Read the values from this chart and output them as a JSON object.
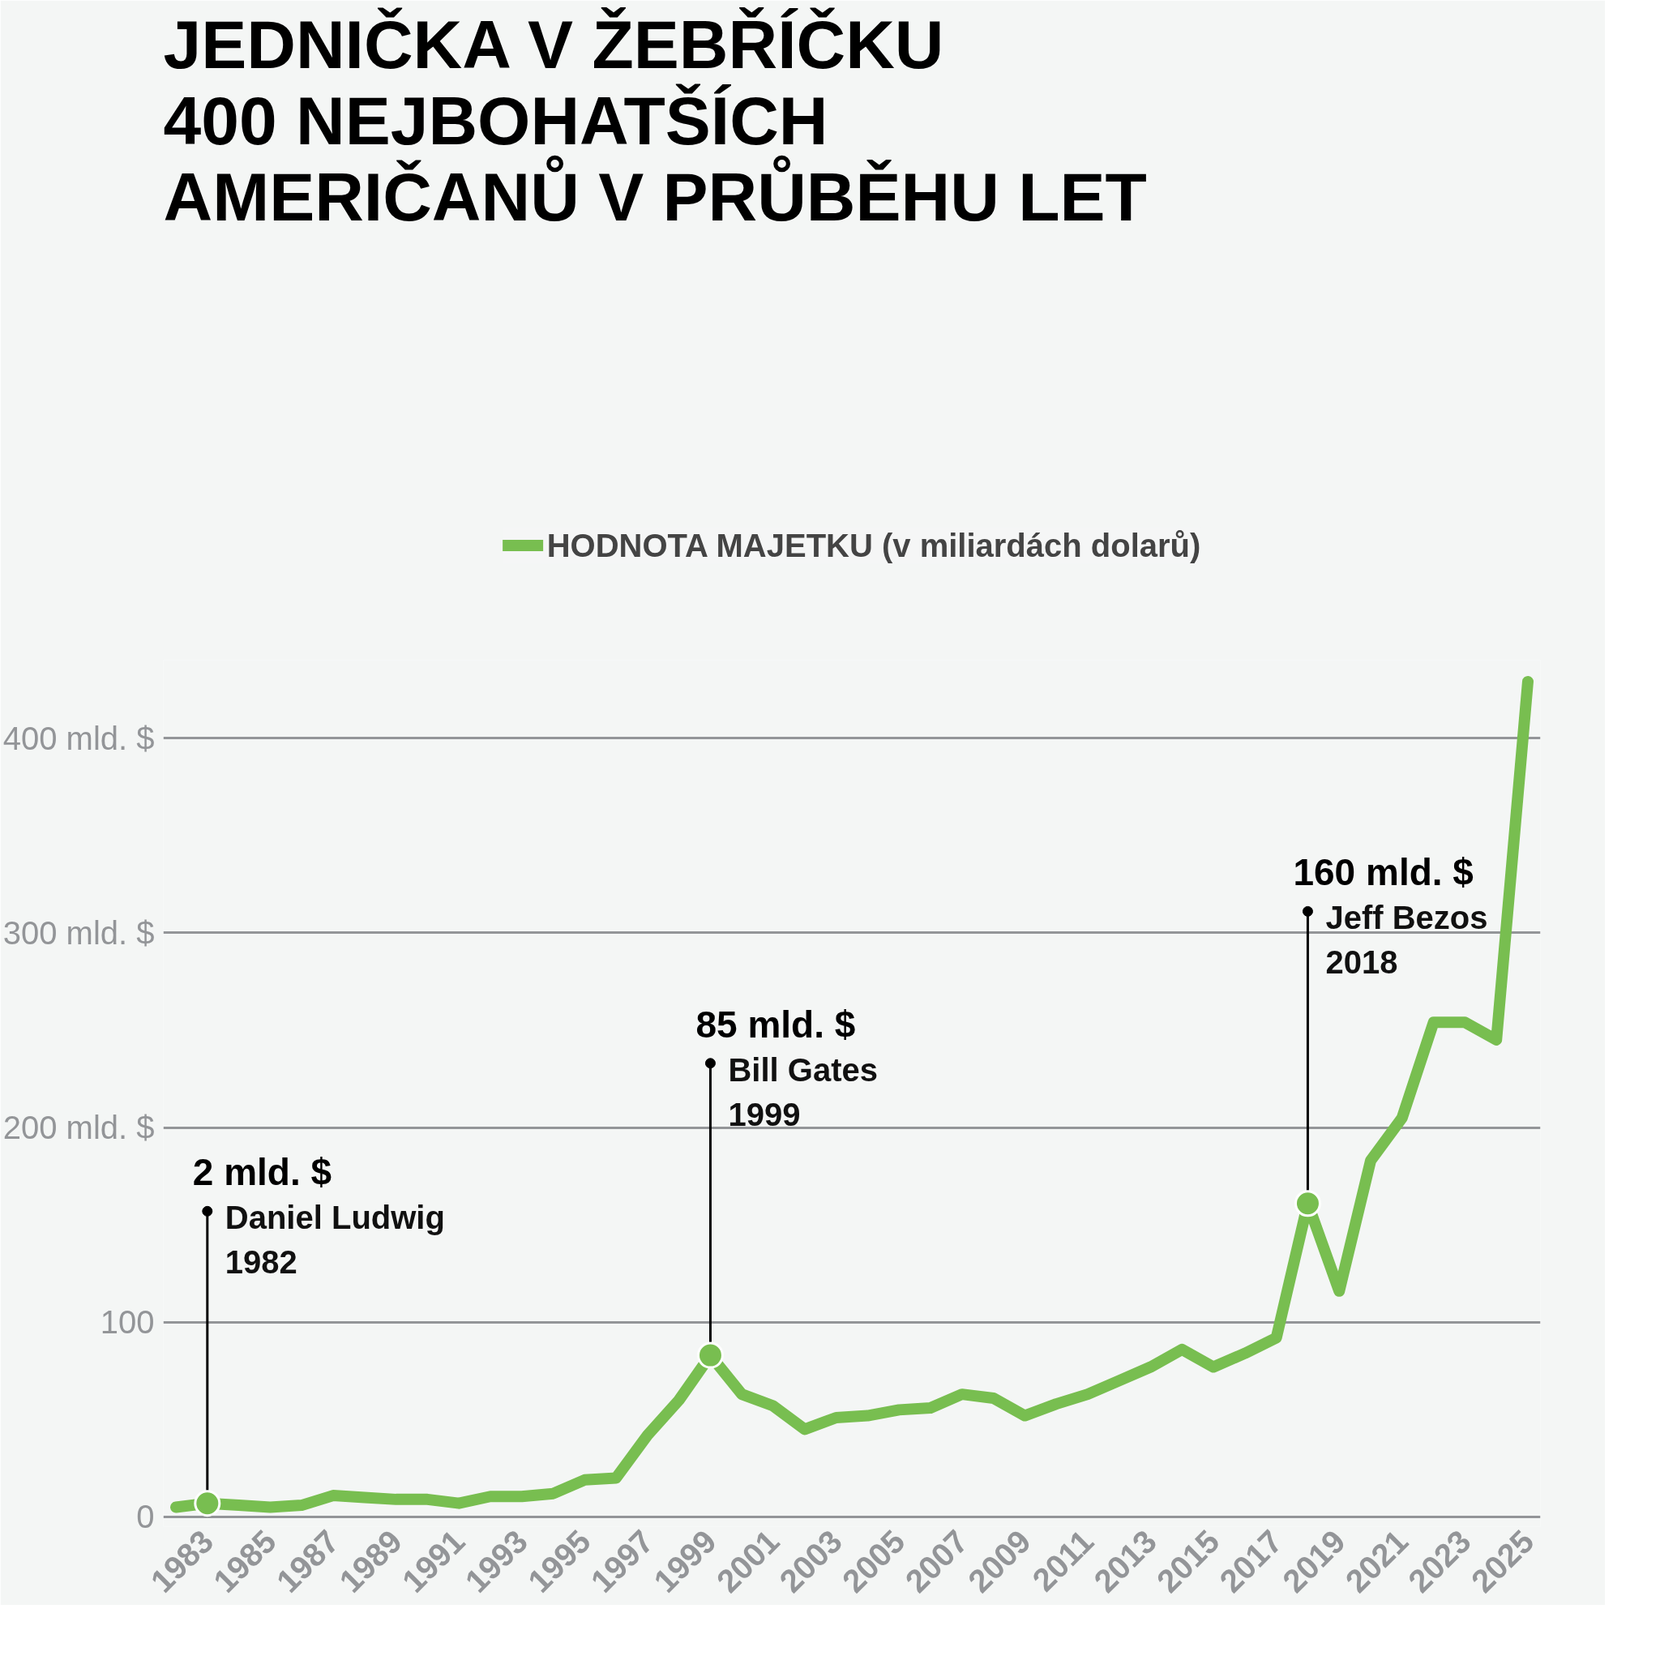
{
  "chart_data": {
    "type": "line",
    "title": "JEDNIČKA V ŽEBŘÍČKU\n400 NEJBOHATŠÍCH\nAMERIČANŮ V PRŮBĚHU LET",
    "x": [
      1982,
      1983,
      1984,
      1985,
      1986,
      1987,
      1988,
      1989,
      1990,
      1991,
      1992,
      1993,
      1994,
      1995,
      1996,
      1997,
      1998,
      1999,
      2000,
      2001,
      2002,
      2003,
      2004,
      2005,
      2006,
      2007,
      2008,
      2009,
      2010,
      2011,
      2012,
      2013,
      2014,
      2015,
      2016,
      2017,
      2018,
      2019,
      2020,
      2021,
      2022,
      2023,
      2024,
      2025
    ],
    "series": [
      {
        "name": "HODNOTA MAJETKU (v miliardách dolarů)",
        "color": "#78be50",
        "values": [
          5,
          7,
          6,
          5,
          6,
          11,
          10,
          9,
          9,
          7,
          10.5,
          10.5,
          12,
          19,
          20,
          42,
          60,
          83,
          63,
          57,
          45,
          51,
          52,
          55,
          56,
          63,
          61,
          52,
          58,
          63,
          70,
          77,
          86,
          77,
          84,
          92,
          161,
          116,
          183,
          205,
          254,
          254,
          245,
          429
        ]
      }
    ],
    "xlim": [
      1981.6,
      2025.4
    ],
    "ylim": [
      -5,
      440
    ],
    "xticks": [
      1983,
      1985,
      1987,
      1989,
      1991,
      1993,
      1995,
      1997,
      1999,
      2001,
      2003,
      2005,
      2007,
      2009,
      2011,
      2013,
      2015,
      2017,
      2019,
      2021,
      2023,
      2025
    ],
    "yticks": [
      0,
      100,
      {
        "value": 200,
        "label": "200 mld. $"
      },
      {
        "value": 300,
        "label": "300 mld. $"
      },
      {
        "value": 400,
        "label": "400 mld. $"
      }
    ],
    "grid": "y",
    "legend": "top",
    "line_style": "solid",
    "annotations": [
      {
        "text": "2 mld. $\nDaniel Ludwig\n1982",
        "x": 1983,
        "y": 7
      },
      {
        "text": "85 mld. $\nBill Gates\n1999",
        "x": 1999,
        "y": 83
      },
      {
        "text": "160 mld. $\nJeff Bezos\n2018",
        "x": 2018,
        "y": 161
      }
    ]
  }
}
